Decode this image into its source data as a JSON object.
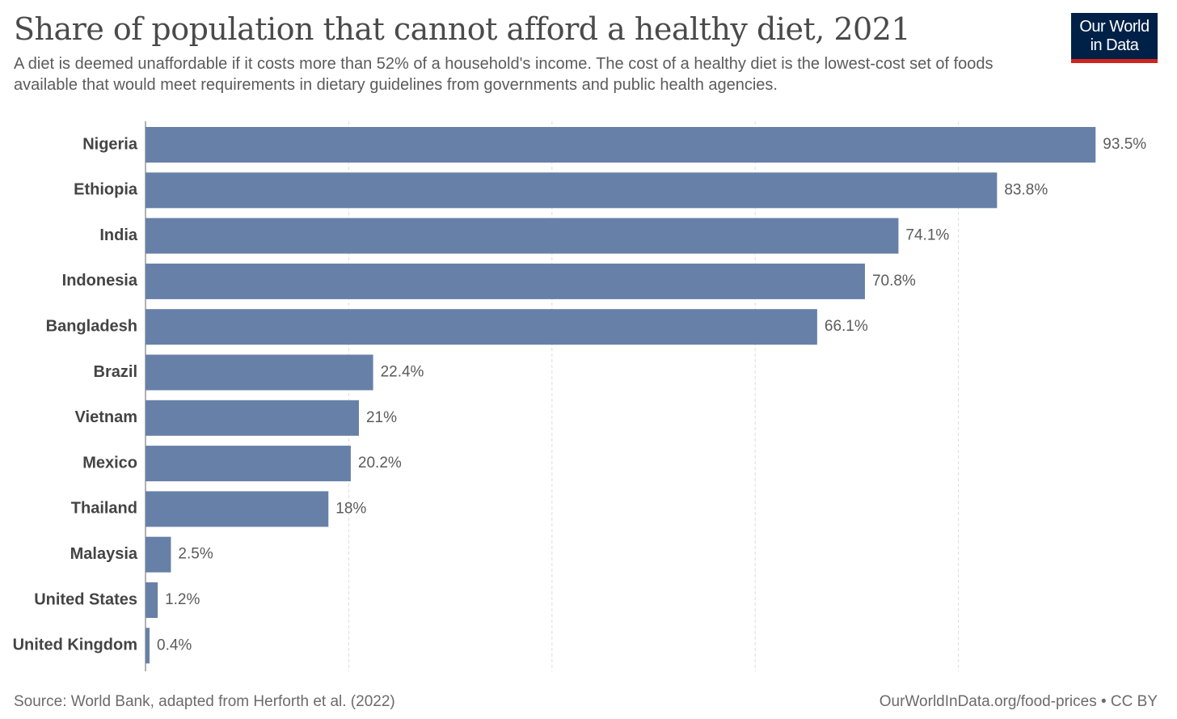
{
  "header": {
    "title": "Share of population that cannot afford a healthy diet, 2021",
    "subtitle": "A diet is deemed unaffordable if it costs more than 52% of a household's income. The cost of a healthy diet is the lowest-cost set of foods available that would meet requirements in dietary guidelines from governments and public health agencies."
  },
  "logo": {
    "line1": "Our World",
    "line2": "in Data"
  },
  "footer": {
    "source": "Source: World Bank, adapted from Herforth et al. (2022)",
    "link": "OurWorldInData.org/food-prices • CC BY"
  },
  "colors": {
    "bar": "#6780a8",
    "grid": "#dddddd",
    "axis": "#999999",
    "logo_bg": "#002147",
    "logo_accent": "#ce261e"
  },
  "chart_data": {
    "type": "bar",
    "orientation": "horizontal",
    "title": "Share of population that cannot afford a healthy diet, 2021",
    "xlabel": "",
    "ylabel": "",
    "xlim": [
      0,
      100
    ],
    "grid": true,
    "categories": [
      "Nigeria",
      "Ethiopia",
      "India",
      "Indonesia",
      "Bangladesh",
      "Brazil",
      "Vietnam",
      "Mexico",
      "Thailand",
      "Malaysia",
      "United States",
      "United Kingdom"
    ],
    "values": [
      93.5,
      83.8,
      74.1,
      70.8,
      66.1,
      22.4,
      21,
      20.2,
      18,
      2.5,
      1.2,
      0.4
    ],
    "value_labels": [
      "93.5%",
      "83.8%",
      "74.1%",
      "70.8%",
      "66.1%",
      "22.4%",
      "21%",
      "20.2%",
      "18%",
      "2.5%",
      "1.2%",
      "0.4%"
    ]
  }
}
